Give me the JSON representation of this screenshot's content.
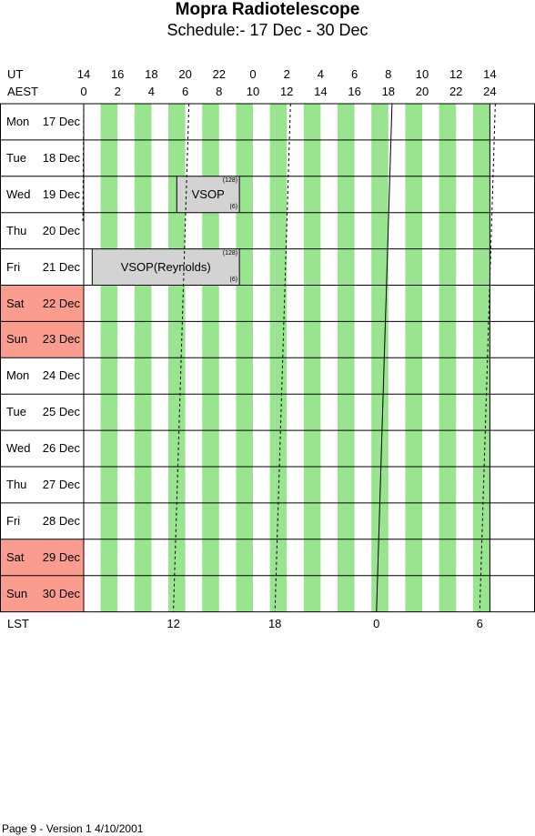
{
  "title": "Mopra Radiotelescope",
  "subtitle": "Schedule:- 17 Dec - 30 Dec",
  "axis": {
    "ut_label": "UT",
    "aest_label": "AEST",
    "ut_ticks": [
      "14",
      "16",
      "18",
      "20",
      "22",
      "0",
      "2",
      "4",
      "6",
      "8",
      "10",
      "12",
      "14"
    ],
    "aest_ticks": [
      "0",
      "2",
      "4",
      "6",
      "8",
      "10",
      "12",
      "14",
      "16",
      "18",
      "20",
      "22",
      "24"
    ],
    "lst_label": "LST",
    "lst_ticks": [
      {
        "label": "12",
        "aest": 5.3
      },
      {
        "label": "18",
        "aest": 11.3
      },
      {
        "label": "0",
        "aest": 17.3
      },
      {
        "label": "6",
        "aest": 23.4
      }
    ]
  },
  "days": [
    {
      "dow": "Mon",
      "date": "17 Dec",
      "weekend": false
    },
    {
      "dow": "Tue",
      "date": "18 Dec",
      "weekend": false
    },
    {
      "dow": "Wed",
      "date": "19 Dec",
      "weekend": false
    },
    {
      "dow": "Thu",
      "date": "20 Dec",
      "weekend": false
    },
    {
      "dow": "Fri",
      "date": "21 Dec",
      "weekend": false
    },
    {
      "dow": "Sat",
      "date": "22 Dec",
      "weekend": true
    },
    {
      "dow": "Sun",
      "date": "23 Dec",
      "weekend": true
    },
    {
      "dow": "Mon",
      "date": "24 Dec",
      "weekend": false
    },
    {
      "dow": "Tue",
      "date": "25 Dec",
      "weekend": false
    },
    {
      "dow": "Wed",
      "date": "26 Dec",
      "weekend": false
    },
    {
      "dow": "Thu",
      "date": "27 Dec",
      "weekend": false
    },
    {
      "dow": "Fri",
      "date": "28 Dec",
      "weekend": false
    },
    {
      "dow": "Sat",
      "date": "29 Dec",
      "weekend": true
    },
    {
      "dow": "Sun",
      "date": "30 Dec",
      "weekend": true
    }
  ],
  "bookings": [
    {
      "day": 2,
      "start": 5.5,
      "end": 9.2,
      "label": "VSOP",
      "sup": "(128)",
      "sub": "(6)"
    },
    {
      "day": 4,
      "start": 0.5,
      "end": 9.2,
      "label": "VSOP(Reynolds)",
      "sup": "(128)",
      "sub": "(6)"
    }
  ],
  "footer": "Page 9 - Version 1  4/10/2001",
  "colors": {
    "stripe": "#99e48f",
    "weekend": "#fa9c8e",
    "booking": "#d3d3d3",
    "grid": "#000000"
  }
}
